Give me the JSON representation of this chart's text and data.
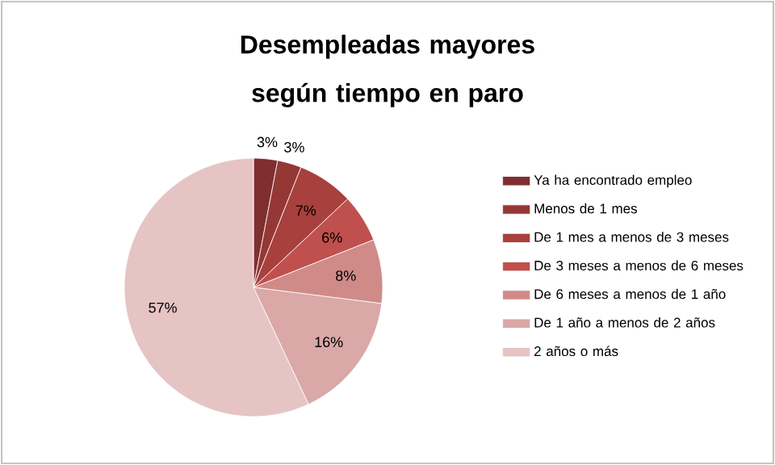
{
  "chart_data": {
    "type": "pie",
    "title": "Desempleadas mayores según tiempo en paro",
    "categories": [
      "Ya ha encontrado empleo",
      "Menos de 1 mes",
      "De 1 mes a menos de 3 meses",
      "De 3 meses a menos de 6 meses",
      "De 6 meses a menos de 1 año",
      "De 1 año a menos de 2 años",
      "2 años o más"
    ],
    "values": [
      3,
      3,
      7,
      6,
      8,
      16,
      57
    ],
    "value_labels": [
      "3%",
      "3%",
      "7%",
      "6%",
      "8%",
      "16%",
      "57%"
    ],
    "colors": [
      "#7f2f2f",
      "#953735",
      "#a8403d",
      "#c0504d",
      "#d08b89",
      "#d9a8a7",
      "#e6c4c4"
    ],
    "legend": "right"
  }
}
